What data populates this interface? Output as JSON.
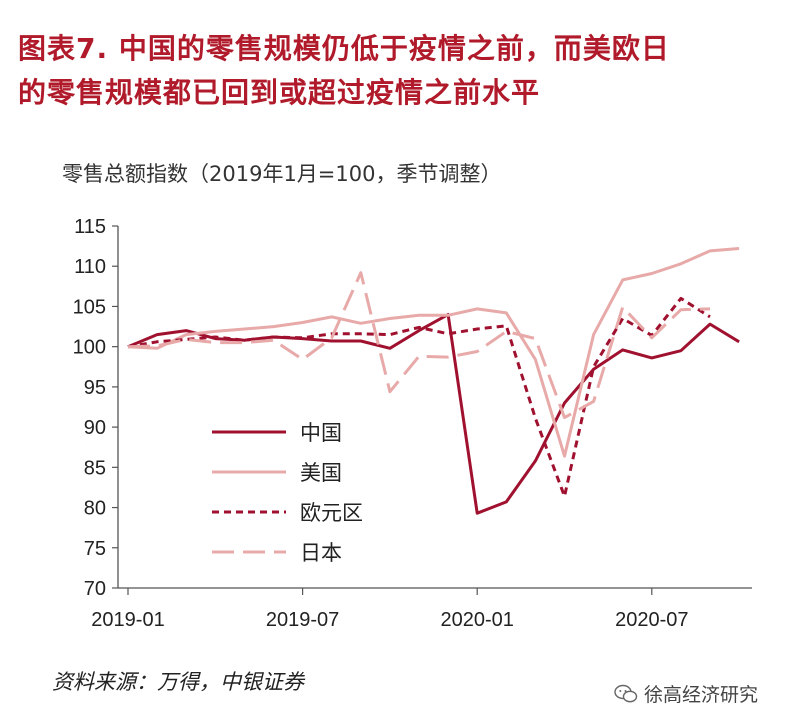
{
  "title_line1": "图表7. 中国的零售规模仍低于疫情之前，而美欧日",
  "title_line2": "的零售规模都已回到或超过疫情之前水平",
  "source": "资料来源：万得，中银证券",
  "watermark": "徐高经济研究",
  "chart_data": {
    "type": "line",
    "title": "零售总额指数（2019年1月=100，季节调整）",
    "xlabel": "",
    "ylabel": "",
    "x": [
      "2019-01",
      "2019-02",
      "2019-03",
      "2019-04",
      "2019-05",
      "2019-06",
      "2019-07",
      "2019-08",
      "2019-09",
      "2019-10",
      "2019-11",
      "2019-12",
      "2020-01",
      "2020-02",
      "2020-03",
      "2020-04",
      "2020-05",
      "2020-06",
      "2020-07",
      "2020-08",
      "2020-09",
      "2020-10"
    ],
    "xticks": [
      "2019-01",
      "2019-07",
      "2020-01",
      "2020-07"
    ],
    "ylim": [
      70,
      115
    ],
    "yticks": [
      70,
      75,
      80,
      85,
      90,
      95,
      100,
      105,
      110,
      115
    ],
    "grid": false,
    "legend_position": "lower-left",
    "series": [
      {
        "name": "中国",
        "color": "#a0112f",
        "dash": "solid",
        "values": [
          100,
          101.5,
          102.0,
          101.0,
          100.8,
          101.2,
          101.0,
          100.7,
          100.7,
          99.8,
          102.0,
          104.0,
          79.3,
          80.7,
          85.8,
          93.0,
          97.2,
          99.6,
          98.6,
          99.5,
          102.8,
          100.6
        ]
      },
      {
        "name": "美国",
        "color": "#e8a9a9",
        "dash": "solid",
        "values": [
          100,
          99.8,
          101.5,
          101.9,
          102.2,
          102.5,
          103.0,
          103.7,
          102.9,
          103.5,
          103.9,
          103.9,
          104.7,
          104.2,
          98.4,
          86.4,
          101.5,
          108.3,
          109.1,
          110.3,
          111.9,
          112.2
        ]
      },
      {
        "name": "欧元区",
        "color": "#a0112f",
        "dash": "dashed",
        "values": [
          100,
          100.6,
          100.9,
          101.2,
          100.8,
          101.2,
          101.1,
          101.6,
          101.6,
          101.5,
          102.4,
          101.6,
          102.2,
          102.6,
          91.1,
          81.4,
          97.5,
          103.5,
          101.4,
          106.0,
          103.7,
          null
        ]
      },
      {
        "name": "日本",
        "color": "#e8a9a9",
        "dash": "longdash",
        "values": [
          100,
          100.1,
          100.9,
          100.5,
          100.5,
          100.8,
          98.4,
          101.1,
          109.2,
          94.4,
          98.8,
          98.7,
          99.4,
          101.9,
          101.0,
          91.2,
          93.2,
          104.9,
          101.1,
          104.6,
          104.7,
          null
        ]
      }
    ]
  }
}
